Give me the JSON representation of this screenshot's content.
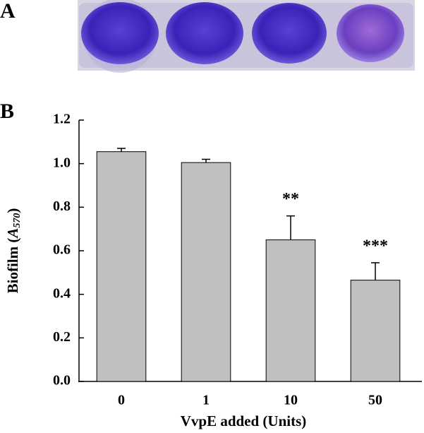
{
  "panel_labels": [
    "A",
    "B"
  ],
  "chart_data": {
    "type": "bar",
    "categories": [
      "0",
      "1",
      "10",
      "50"
    ],
    "values": [
      1.055,
      1.005,
      0.65,
      0.465
    ],
    "errors": [
      0.015,
      0.015,
      0.11,
      0.08
    ],
    "annotations": [
      null,
      null,
      "**",
      "***"
    ],
    "color": "#c0c0c0",
    "xlabel": "VvpE added (Units)",
    "ylabel_parts": [
      "Biofilm (",
      "A",
      "570",
      ")"
    ],
    "ylim": [
      0,
      1.2
    ],
    "yticks": [
      {
        "value": 0,
        "label": "0.0"
      },
      0.2,
      0.4,
      0.6,
      0.8,
      {
        "value": 1,
        "label": "1.0"
      },
      1.2
    ]
  }
}
